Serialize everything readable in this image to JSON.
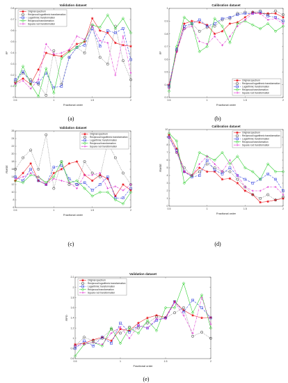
{
  "chart_data": [
    {
      "type": "line",
      "panel": "a",
      "title": "Validation dataset",
      "xlabel": "Fractional order",
      "ylabel": "R²",
      "xlim": [
        0.5,
        2
      ],
      "ylim": [
        0,
        0.8
      ],
      "xticks": [
        0.5,
        1,
        1.5,
        2
      ],
      "xtick_labels": [
        "0.5",
        "1",
        "1.5",
        "2"
      ],
      "yticks": [
        0,
        0.1,
        0.2,
        0.3,
        0.4,
        0.5,
        0.6,
        0.7,
        0.8
      ],
      "ytick_labels": [
        "0",
        "0.1",
        "0.2",
        "0.3",
        "0.4",
        "0.5",
        "0.6",
        "0.7",
        "0.8"
      ],
      "legend_position": "top-left",
      "x": [
        0.5,
        0.6,
        0.7,
        0.8,
        0.9,
        1.0,
        1.1,
        1.2,
        1.3,
        1.4,
        1.5,
        1.6,
        1.7,
        1.8,
        1.9,
        2.0
      ],
      "series": [
        {
          "name": "Original spectrum",
          "values": [
            0.13,
            0.17,
            0.12,
            0.25,
            0.4,
            0.38,
            0.37,
            0.42,
            0.48,
            0.5,
            0.71,
            0.6,
            0.58,
            0.49,
            0.47,
            0.46
          ]
        },
        {
          "name": "Reciprocal logarithmic transformation",
          "values": [
            0.14,
            0.22,
            0.16,
            0.12,
            0.02,
            0.42,
            0.12,
            0.36,
            0.45,
            0.4,
            0.65,
            0.36,
            0.3,
            0.64,
            0.33,
            0.16
          ]
        },
        {
          "name": "Logarithmic transformation",
          "values": [
            0.16,
            0.23,
            0.14,
            0.13,
            0.22,
            0.09,
            0.1,
            0.36,
            0.45,
            0.47,
            0.62,
            0.46,
            0.6,
            0.58,
            0.62,
            0.34
          ]
        },
        {
          "name": "Reciprocal transformation",
          "values": [
            0.11,
            0.28,
            0.12,
            0.01,
            0.26,
            0.04,
            0.35,
            0.41,
            0.45,
            0.51,
            0.65,
            0.63,
            0.74,
            0.62,
            0.71,
            0.58
          ]
        },
        {
          "name": "Square root transformation",
          "values": [
            0.12,
            0.15,
            0.08,
            0.16,
            0.48,
            0.39,
            0.4,
            0.43,
            0.55,
            0.52,
            0.64,
            0.51,
            0.49,
            0.2,
            0.55,
            0.22
          ]
        }
      ]
    },
    {
      "type": "line",
      "panel": "b",
      "title": "Calibration dataset",
      "xlabel": "Fractional order",
      "ylabel": "R²",
      "xlim": [
        0.5,
        2
      ],
      "ylim": [
        0.3,
        1
      ],
      "xticks": [
        0.5,
        1,
        1.5,
        2
      ],
      "xtick_labels": [
        "0.5",
        "1",
        "1.5",
        "2"
      ],
      "yticks": [
        0.3,
        0.4,
        0.5,
        0.6,
        0.7,
        0.8,
        0.9,
        1
      ],
      "ytick_labels": [
        "0.3",
        "0.4",
        "0.5",
        "0.6",
        "0.7",
        "0.8",
        "0.9",
        "1"
      ],
      "legend_position": "bottom-right",
      "x": [
        0.5,
        0.6,
        0.7,
        0.8,
        0.9,
        1.0,
        1.1,
        1.2,
        1.3,
        1.4,
        1.5,
        1.6,
        1.7,
        1.8,
        1.9,
        2.0
      ],
      "series": [
        {
          "name": "Original spectrum",
          "values": [
            0.4,
            0.66,
            0.88,
            0.9,
            0.89,
            0.87,
            0.8,
            0.82,
            0.88,
            0.89,
            0.93,
            0.97,
            0.96,
            0.96,
            0.96,
            0.93
          ]
        },
        {
          "name": "Reciprocal logarithmic transformation",
          "values": [
            0.38,
            0.67,
            0.84,
            0.88,
            0.82,
            0.85,
            0.86,
            0.91,
            0.92,
            0.96,
            0.97,
            0.97,
            0.98,
            0.95,
            0.98,
            0.95
          ]
        },
        {
          "name": "Logarithmic transformation",
          "values": [
            0.39,
            0.68,
            0.86,
            0.88,
            0.91,
            0.86,
            0.88,
            0.92,
            0.93,
            0.95,
            0.96,
            0.96,
            0.97,
            0.94,
            0.93,
            0.9
          ]
        },
        {
          "name": "Reciprocal transformation",
          "values": [
            0.35,
            0.7,
            0.93,
            0.88,
            0.66,
            0.7,
            0.92,
            0.86,
            0.73,
            0.88,
            0.9,
            0.87,
            0.84,
            0.88,
            0.82,
            0.86
          ]
        },
        {
          "name": "Square root transformation",
          "values": [
            0.37,
            0.66,
            0.84,
            0.86,
            0.74,
            0.72,
            0.78,
            0.71,
            0.78,
            0.86,
            0.91,
            0.96,
            0.96,
            0.91,
            0.92,
            0.88
          ]
        }
      ]
    },
    {
      "type": "line",
      "panel": "c",
      "title": "Validation dataset",
      "xlabel": "Fractional order",
      "ylabel": "RMSE",
      "xlim": [
        0.5,
        2
      ],
      "ylim": [
        6,
        26
      ],
      "xticks": [
        0.5,
        1,
        1.5,
        2
      ],
      "xtick_labels": [
        "0.5",
        "1",
        "1.5",
        "2"
      ],
      "yticks": [
        6,
        8,
        10,
        12,
        14,
        16,
        18,
        20,
        22,
        24,
        26
      ],
      "ytick_labels": [
        "6",
        "8",
        "10",
        "12",
        "14",
        "16",
        "18",
        "20",
        "22",
        "24",
        "26"
      ],
      "legend_position": "top-right",
      "x": [
        0.5,
        0.6,
        0.7,
        0.8,
        0.9,
        1.0,
        1.1,
        1.2,
        1.3,
        1.4,
        1.5,
        1.6,
        1.7,
        1.8,
        1.9,
        2.0
      ],
      "series": [
        {
          "name": "Original spectrum",
          "values": [
            13,
            15,
            17.5,
            13,
            12,
            15,
            16,
            17.5,
            18,
            14.5,
            13,
            14.5,
            13.5,
            9,
            12,
            10.5
          ]
        },
        {
          "name": "Reciprocal logarithmic transformation",
          "values": [
            16,
            19,
            21,
            16,
            25,
            11,
            18,
            12,
            12,
            18,
            15,
            14,
            23,
            19,
            15,
            12
          ]
        },
        {
          "name": "Logarithmic transformation",
          "values": [
            14,
            13,
            16,
            13,
            12,
            16.5,
            17,
            13.5,
            12,
            12.5,
            10.5,
            12,
            14,
            8.5,
            8.5,
            11
          ]
        },
        {
          "name": "Reciprocal transformation",
          "values": [
            13,
            12.5,
            14.5,
            14,
            12.5,
            14,
            18,
            12.5,
            13,
            11,
            9,
            10,
            10,
            8,
            7,
            10
          ]
        },
        {
          "name": "Square root transformation",
          "values": [
            13.5,
            14,
            15,
            14,
            12,
            13.5,
            13,
            12.5,
            11,
            14.5,
            14.5,
            15,
            11,
            11.5,
            10.5,
            12
          ]
        }
      ]
    },
    {
      "type": "line",
      "panel": "d",
      "title": "Calibration dataset",
      "xlabel": "Fractional order",
      "ylabel": "RMSE",
      "xlim": [
        0.5,
        2
      ],
      "ylim": [
        0,
        10
      ],
      "xticks": [
        0.5,
        1,
        1.5,
        2
      ],
      "xtick_labels": [
        "0.5",
        "1",
        "1.5",
        "2"
      ],
      "yticks": [
        0,
        1,
        2,
        3,
        4,
        5,
        6,
        7,
        8,
        9,
        10
      ],
      "ytick_labels": [
        "0",
        "1",
        "2",
        "3",
        "4",
        "5",
        "6",
        "7",
        "8",
        "9",
        "10"
      ],
      "legend_position": "top-right",
      "x": [
        0.5,
        0.6,
        0.7,
        0.8,
        0.9,
        1.0,
        1.1,
        1.2,
        1.3,
        1.4,
        1.5,
        1.6,
        1.7,
        1.8,
        1.9,
        2.0
      ],
      "series": [
        {
          "name": "Original spectrum",
          "values": [
            9.3,
            7.5,
            4.5,
            4.0,
            5.0,
            4.5,
            4.5,
            3.5,
            3.6,
            3.0,
            2.0,
            1.5,
            0.5,
            0.6,
            0.8,
            1.0
          ]
        },
        {
          "name": "Reciprocal logarithmic transformation",
          "values": [
            9.0,
            7.0,
            5.0,
            4.0,
            4.5,
            5.5,
            5.0,
            4.5,
            4.5,
            3.5,
            2.5,
            1.5,
            1.0,
            1.5,
            0.8,
            1.2
          ]
        },
        {
          "name": "Logarithmic transformation",
          "values": [
            9.0,
            7.3,
            4.5,
            3.8,
            4.0,
            6.0,
            4.7,
            4.2,
            5.0,
            4.0,
            3.5,
            3.0,
            3.5,
            4.2,
            3.5,
            2.0
          ]
        },
        {
          "name": "Reciprocal transformation",
          "values": [
            9.5,
            8.5,
            3.0,
            4.0,
            7.0,
            6.5,
            6.0,
            7.0,
            5.5,
            6.5,
            5.0,
            4.5,
            3.5,
            5.5,
            4.5,
            4.5
          ]
        },
        {
          "name": "Square root transformation",
          "values": [
            9.0,
            7.0,
            4.5,
            4.0,
            5.5,
            6.5,
            5.5,
            4.5,
            6.0,
            4.0,
            2.5,
            2.0,
            2.0,
            2.5,
            2.5,
            1.5
          ]
        }
      ]
    },
    {
      "type": "line",
      "panel": "e",
      "title": "Validation dataset",
      "xlabel": "Fractional order",
      "ylabel": "RPD",
      "xlim": [
        0.5,
        2
      ],
      "ylim": [
        0.6,
        2.2
      ],
      "xticks": [
        0.5,
        1,
        1.5,
        2
      ],
      "xtick_labels": [
        "0.5",
        "1",
        "1.5",
        "2"
      ],
      "yticks": [
        0.6,
        0.8,
        1,
        1.2,
        1.4,
        1.6,
        1.8,
        2,
        2.2
      ],
      "ytick_labels": [
        "0.6",
        "0.8",
        "1",
        "1.2",
        "1.4",
        "1.6",
        "1.8",
        "2",
        "2.2"
      ],
      "legend_position": "top-left",
      "x": [
        0.5,
        0.6,
        0.7,
        0.8,
        0.9,
        1.0,
        1.1,
        1.2,
        1.3,
        1.4,
        1.5,
        1.6,
        1.7,
        1.8,
        1.9,
        2.0
      ],
      "series": [
        {
          "name": "Original spectrum",
          "values": [
            0.88,
            0.9,
            0.97,
            1.02,
            0.95,
            1.18,
            1.15,
            1.3,
            1.4,
            1.45,
            1.41,
            1.72,
            1.55,
            1.45,
            1.4,
            1.41
          ]
        },
        {
          "name": "Reciprocal logarithmic transformation",
          "values": [
            0.85,
            1.02,
            0.95,
            1.0,
            1.18,
            1.1,
            1.22,
            1.2,
            1.3,
            1.42,
            1.4,
            1.5,
            1.6,
            1.04,
            1.12,
            1.0
          ]
        },
        {
          "name": "Logarithmic transformation",
          "values": [
            0.8,
            0.95,
            0.85,
            1.02,
            0.9,
            1.3,
            1.12,
            1.25,
            1.2,
            1.35,
            1.4,
            1.72,
            1.52,
            1.75,
            1.6,
            1.4
          ]
        },
        {
          "name": "Reciprocal transformation",
          "values": [
            0.65,
            0.88,
            0.92,
            0.85,
            1.2,
            0.9,
            1.2,
            1.1,
            1.35,
            1.15,
            1.6,
            1.6,
            2.08,
            1.5,
            1.85,
            1.2
          ]
        },
        {
          "name": "Square root transformation",
          "values": [
            0.85,
            0.88,
            0.92,
            0.88,
            1.1,
            1.22,
            1.0,
            1.25,
            1.2,
            1.38,
            1.38,
            1.7,
            1.45,
            1.1,
            1.8,
            1.28
          ]
        }
      ]
    }
  ],
  "captions": [
    "(a)",
    "(b)",
    "(c)",
    "(d)",
    "(e)"
  ],
  "style": {
    "colors": [
      "#e8141c",
      "#333333",
      "#2233dd",
      "#22cc22",
      "#dd22cc"
    ],
    "markers": [
      "star-filled",
      "open-circle",
      "open-square",
      "open-diamond",
      "plus"
    ],
    "dashes": [
      "",
      "0.6,1.2",
      "3,1.5",
      "",
      "3,1,0.6,1"
    ]
  }
}
